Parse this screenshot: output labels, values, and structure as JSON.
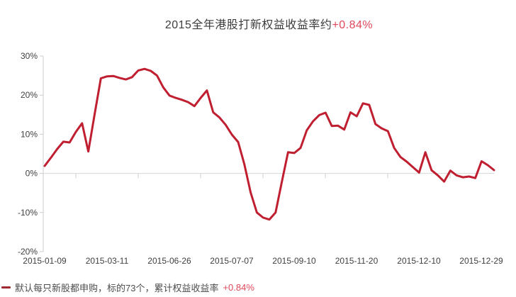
{
  "title": {
    "text": "2015全年港股打新权益收益率约",
    "highlight": "+0.84%"
  },
  "legend": {
    "items": [
      {
        "label": "默认每只新股都申购，标的73个，累计权益收益率",
        "highlight": "+0.84%",
        "marker_color": "#9e2b33"
      }
    ]
  },
  "colors": {
    "line": "#bf1f30",
    "highlight_red": "#e0495b",
    "axis_gray": "#cccccc",
    "tick_label_gray": "#404040",
    "title_gray": "#3d3d3d",
    "legend_text_gray": "#4d4d4d"
  },
  "chart_data": {
    "type": "line",
    "title": "2015全年港股打新权益收益率约+0.84%",
    "xlabel": "",
    "ylabel": "",
    "ylim": [
      -20,
      30
    ],
    "y_tick_values": [
      30,
      20,
      10,
      0,
      -10,
      -20
    ],
    "y_tick_labels": [
      "30%",
      "20%",
      "10%",
      "0%",
      "-10%",
      "-20%"
    ],
    "x_tick_labels": [
      "2015-01-09",
      "2015-03-11",
      "2015-06-26",
      "2015-07-07",
      "2015-09-10",
      "2015-11-20",
      "2015-12-10",
      "2015-12-29"
    ],
    "x_tick_label_point_indices": [
      0,
      10,
      20,
      30,
      40,
      50,
      60,
      70
    ],
    "n_points": 73,
    "grid": {
      "zero_line": true,
      "other_gridlines": false
    },
    "legend_position": "bottom-left",
    "series": [
      {
        "name": "默认每只新股都申购，标的73个，累计权益收益率",
        "color": "#bf1f30",
        "final_value_pct": 0.84,
        "values": [
          1.9,
          4.0,
          6.2,
          8.1,
          7.9,
          10.6,
          12.8,
          5.6,
          15.0,
          24.3,
          24.8,
          24.9,
          24.4,
          24.0,
          24.6,
          26.3,
          26.7,
          26.2,
          25.0,
          22.0,
          19.9,
          19.3,
          18.8,
          18.2,
          17.2,
          19.3,
          21.2,
          15.6,
          14.3,
          12.4,
          9.9,
          8.0,
          2.3,
          -4.9,
          -10.0,
          -11.3,
          -11.8,
          -10.0,
          -2.2,
          5.4,
          5.2,
          6.5,
          11.0,
          13.3,
          14.9,
          15.5,
          12.1,
          12.2,
          11.2,
          15.6,
          14.6,
          17.9,
          17.5,
          12.6,
          11.5,
          10.8,
          6.5,
          4.2,
          3.0,
          1.6,
          0.2,
          5.4,
          0.8,
          -0.5,
          -2.1,
          0.7,
          -0.5,
          -1.0,
          -0.8,
          -1.2,
          3.1,
          2.1,
          0.84
        ]
      }
    ]
  }
}
